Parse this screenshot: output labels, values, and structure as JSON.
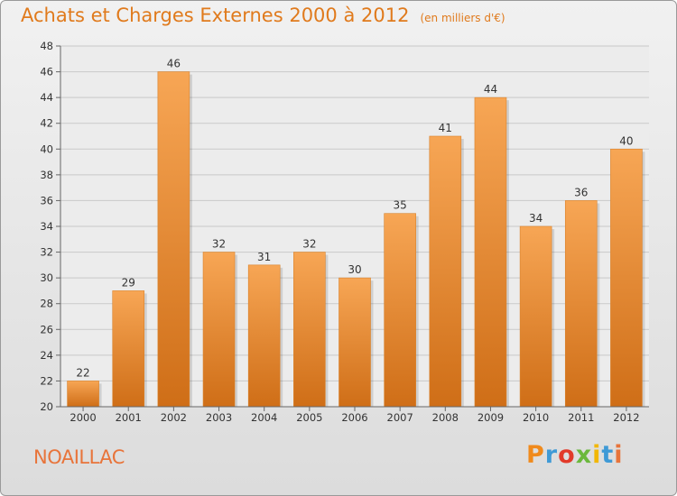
{
  "header": {
    "title": "Achats et Charges Externes 2000 à 2012",
    "unit": "(en milliers d'€)"
  },
  "footer": {
    "commune": "NOAILLAC",
    "logo": [
      "P",
      "r",
      "o",
      "x",
      "i",
      "t",
      "i"
    ],
    "logo_colors": [
      "#f08a1c",
      "#3f9ad6",
      "#e23a2a",
      "#6bb83c",
      "#f2b705",
      "#3f9ad6",
      "#e8743a"
    ]
  },
  "colors": {
    "bar_light": "#f7a655",
    "bar_dark": "#cf6e17",
    "grid": "#c9c9c9"
  },
  "chart_data": {
    "type": "bar",
    "title": "Achats et Charges Externes 2000 à 2012",
    "subtitle": "(en milliers d'€)",
    "categories": [
      "2000",
      "2001",
      "2002",
      "2003",
      "2004",
      "2005",
      "2006",
      "2007",
      "2008",
      "2009",
      "2010",
      "2011",
      "2012"
    ],
    "values": [
      22,
      29,
      46,
      32,
      31,
      32,
      30,
      35,
      41,
      44,
      34,
      36,
      40
    ],
    "ylim": [
      20,
      48
    ],
    "yticks": [
      20,
      22,
      24,
      26,
      28,
      30,
      32,
      34,
      36,
      38,
      40,
      42,
      44,
      46,
      48
    ],
    "grid": true,
    "legend": "none"
  }
}
